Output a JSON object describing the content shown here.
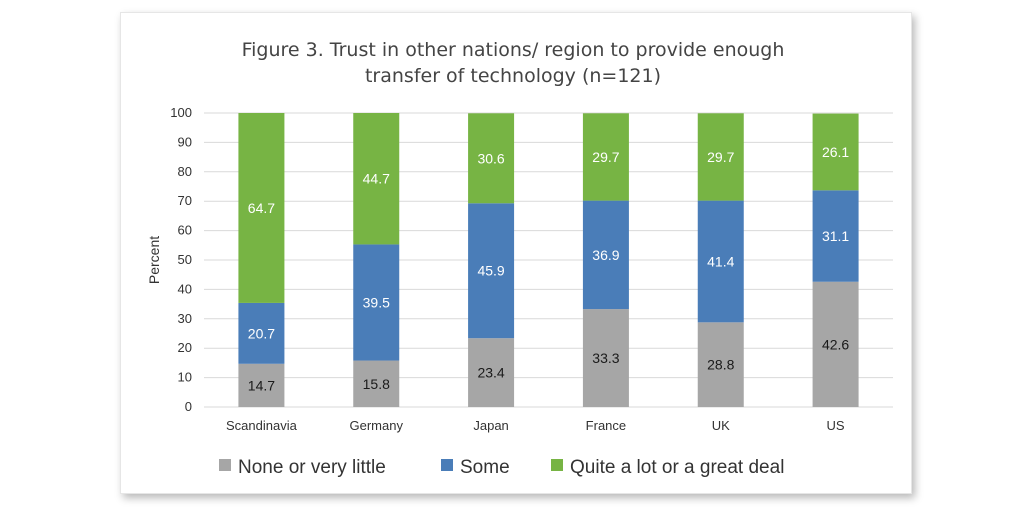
{
  "chart_data": {
    "type": "bar",
    "stacked": true,
    "title_lines": [
      "Figure 3. Trust in other nations/ region to provide enough",
      "transfer of technology (n=121)"
    ],
    "categories": [
      "Scandinavia",
      "Germany",
      "Japan",
      "France",
      "UK",
      "US"
    ],
    "series": [
      {
        "name": "None or very little",
        "color": "#a6a6a6",
        "label_color": "#1a1a1a",
        "values": [
          14.7,
          15.8,
          23.4,
          33.3,
          28.8,
          42.6
        ]
      },
      {
        "name": "Some",
        "color": "#4a7db8",
        "label_color": "#ffffff",
        "values": [
          20.7,
          39.5,
          45.9,
          36.9,
          41.4,
          31.1
        ]
      },
      {
        "name": "Quite a lot or a great deal",
        "color": "#77b444",
        "label_color": "#ffffff",
        "values": [
          64.7,
          44.7,
          30.6,
          29.7,
          29.7,
          26.1
        ]
      }
    ],
    "ylabel": "Percent",
    "xlabel": "",
    "ylim": [
      0,
      100
    ],
    "yticks": [
      0,
      10,
      20,
      30,
      40,
      50,
      60,
      70,
      80,
      90,
      100
    ],
    "legend_position": "bottom"
  }
}
